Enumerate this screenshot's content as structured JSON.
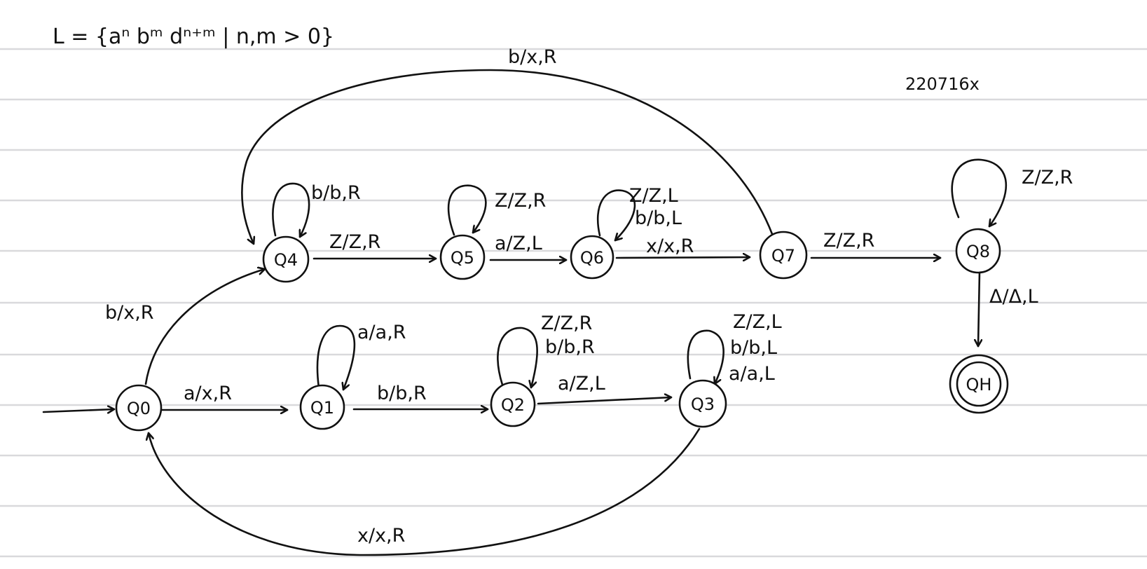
{
  "title": "L = {aⁿ bᵐ dⁿ⁺ᵐ | n,m > 0}",
  "id_code": "220716x",
  "states": {
    "q0": "Q0",
    "q1": "Q1",
    "q2": "Q2",
    "q3": "Q3",
    "q4": "Q4",
    "q5": "Q5",
    "q6": "Q6",
    "q7": "Q7",
    "q8": "Q8",
    "qh": "QH"
  },
  "transitions": {
    "q0_q1": "a/x,R",
    "q1_loop": "a/a,R",
    "q1_q2": "b/b,R",
    "q2_loop_1": "Z/Z,R",
    "q2_loop_2": "b/b,R",
    "q2_q3": "a/Z,L",
    "q3_loop_1": "Z/Z,L",
    "q3_loop_2": "b/b,L",
    "q3_loop_3": "a/a,L",
    "q3_q0": "x/x,R",
    "q0_q4": "b/x,R",
    "q4_loop": "b/b,R",
    "q4_q5": "Z/Z,R",
    "q5_loop": "Z/Z,R",
    "q5_q6": "a/Z,L",
    "q6_loop_1": "Z/Z,L",
    "q6_loop_2": "b/b,L",
    "q6_q7": "x/x,R",
    "q7_q4": "b/x,R",
    "q7_q8": "Z/Z,R",
    "q8_loop": "Z/Z,R",
    "q8_qh": "Δ/Δ,L"
  }
}
